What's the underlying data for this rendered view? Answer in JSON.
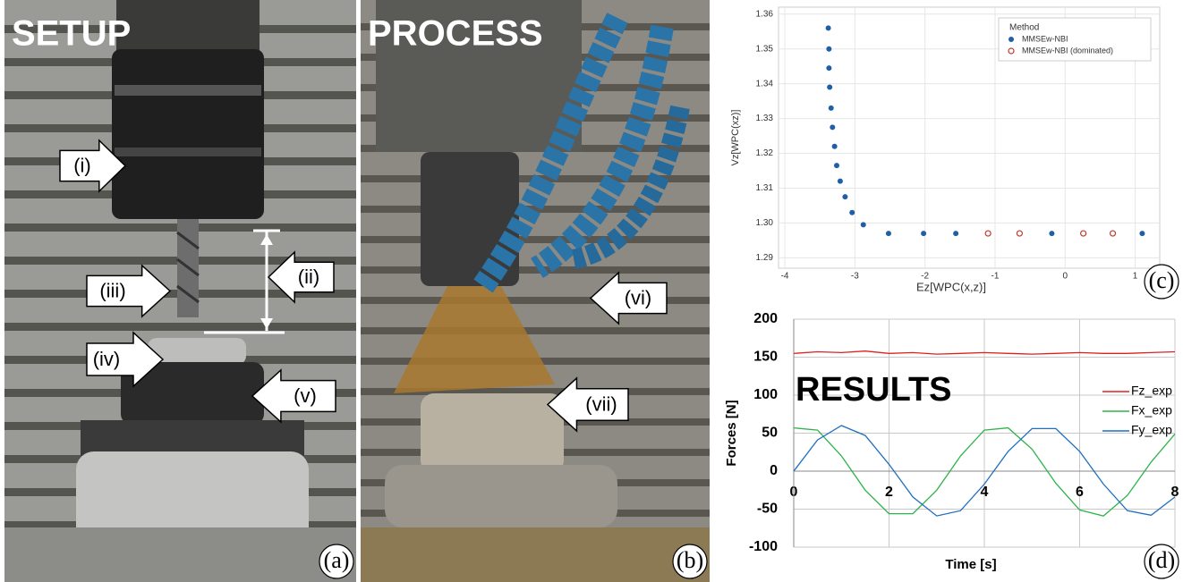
{
  "panels": [
    {
      "label": "(a)",
      "title": "SETUP",
      "callouts": [
        "(i)",
        "(ii)",
        "(iii)",
        "(iv)",
        "(v)"
      ]
    },
    {
      "label": "(b)",
      "title": "PROCESS",
      "callouts": [
        "(vi)",
        "(vii)"
      ]
    }
  ],
  "chart_data": [
    {
      "type": "scatter",
      "panel_label": "(c)",
      "xlabel": "Ez[WPC(x,z)]",
      "ylabel": "Vz[WPC(xz)]",
      "legend_title": "Method",
      "legend": "upper right",
      "xlim": [
        -4.09,
        1.35
      ],
      "xticks": [
        -4,
        -3,
        -2,
        -1,
        0,
        1
      ],
      "ylim": [
        1.287,
        1.362
      ],
      "yticks": [
        {
          "value": 1.29,
          "label": "1.29"
        },
        {
          "value": 1.3,
          "label": "1.30"
        },
        {
          "value": 1.31,
          "label": "1.31"
        },
        {
          "value": 1.32,
          "label": "1.32"
        },
        {
          "value": 1.33,
          "label": "1.33"
        },
        {
          "value": 1.34,
          "label": "1.34"
        },
        {
          "value": 1.35,
          "label": "1.35"
        },
        {
          "value": 1.36,
          "label": "1.36"
        }
      ],
      "series": [
        {
          "name": "MMSEw-NBI",
          "color": "#1f5fa8",
          "marker": "filled",
          "x": [
            -3.38,
            -3.37,
            -3.37,
            -3.36,
            -3.34,
            -3.32,
            -3.29,
            -3.26,
            -3.21,
            -3.14,
            -3.04,
            -2.88,
            -2.52,
            -2.02,
            -1.56,
            -0.19,
            1.1
          ],
          "values": [
            1.356,
            1.35,
            1.3445,
            1.339,
            1.333,
            1.3275,
            1.322,
            1.3165,
            1.312,
            1.3075,
            1.303,
            1.2995,
            1.297,
            1.297,
            1.297,
            1.297,
            1.297
          ]
        },
        {
          "name": "MMSEw-NBI (dominated)",
          "color": "#c0392b",
          "marker": "hollow",
          "x": [
            -1.1,
            -0.65,
            0.26,
            0.68
          ],
          "values": [
            1.297,
            1.297,
            1.297,
            1.297
          ]
        }
      ]
    },
    {
      "type": "line",
      "panel_label": "(d)",
      "annotation": "RESULTS",
      "xlabel": "Time [s]",
      "ylabel": "Forces [N]",
      "legend": "right",
      "grid": true,
      "xlim": [
        0,
        8
      ],
      "xticks": [
        0,
        2,
        4,
        6,
        8
      ],
      "ylim": [
        -100,
        200
      ],
      "yticks": [
        -100,
        -50,
        0,
        50,
        100,
        150,
        200
      ],
      "x": [
        0,
        0.5,
        1,
        1.5,
        2,
        2.5,
        3,
        3.5,
        4,
        4.5,
        5,
        5.5,
        6,
        6.5,
        7,
        7.5,
        8
      ],
      "series": [
        {
          "name": "Fz_exp",
          "color": "#e02020",
          "values": [
            155,
            157,
            156,
            158,
            155,
            156,
            154,
            155,
            156,
            155,
            154,
            155,
            156,
            155,
            155,
            156,
            157
          ]
        },
        {
          "name": "Fx_exp",
          "color": "#2db34a",
          "values": [
            57,
            54,
            20,
            -25,
            -56,
            -56,
            -25,
            20,
            54,
            57,
            29,
            -16,
            -51,
            -59,
            -32,
            12,
            49
          ]
        },
        {
          "name": "Fy_exp",
          "color": "#1f6fc0",
          "values": [
            0,
            41,
            60,
            47,
            9,
            -34,
            -59,
            -52,
            -17,
            26,
            56,
            56,
            26,
            -17,
            -52,
            -58,
            -34
          ]
        }
      ]
    }
  ]
}
